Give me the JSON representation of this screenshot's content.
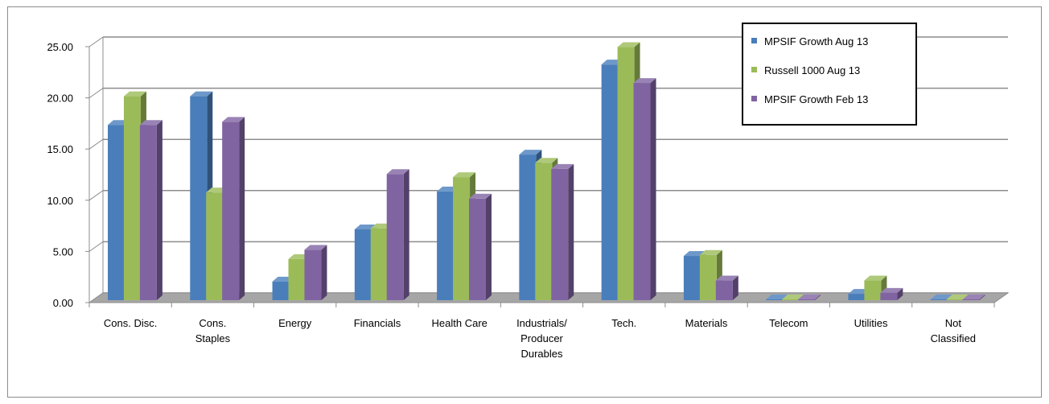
{
  "chart_data": {
    "type": "bar",
    "categories": [
      [
        "Cons. Disc."
      ],
      [
        "Cons.",
        "Staples"
      ],
      [
        "Energy"
      ],
      [
        "Financials"
      ],
      [
        "Health Care"
      ],
      [
        "Industrials/",
        "Producer",
        "Durables"
      ],
      [
        "Tech."
      ],
      [
        "Materials"
      ],
      [
        "Telecom"
      ],
      [
        "Utilities"
      ],
      [
        "Not",
        "Classified"
      ]
    ],
    "series": [
      {
        "name": "MPSIF Growth Aug 13",
        "color": "#4a7ebb",
        "values": [
          17.2,
          20.0,
          1.9,
          7.0,
          10.7,
          14.3,
          23.1,
          4.4,
          0.0,
          0.7,
          0.0
        ]
      },
      {
        "name": "Russell 1000 Aug 13",
        "color": "#9bbb59",
        "values": [
          20.0,
          10.6,
          4.1,
          7.1,
          12.1,
          13.5,
          24.8,
          4.5,
          0.0,
          2.0,
          0.0
        ]
      },
      {
        "name": "MPSIF Growth Feb 13",
        "color": "#8064a2",
        "values": [
          17.2,
          17.5,
          5.0,
          12.4,
          10.0,
          12.9,
          21.3,
          2.0,
          0.0,
          0.8,
          0.0
        ]
      }
    ],
    "y_ticks": [
      "0.00",
      "5.00",
      "10.00",
      "15.00",
      "20.00",
      "25.00"
    ],
    "ylim": [
      0,
      25
    ],
    "grid": true,
    "legend_position": "top-right",
    "title": "",
    "xlabel": "",
    "ylabel": ""
  }
}
